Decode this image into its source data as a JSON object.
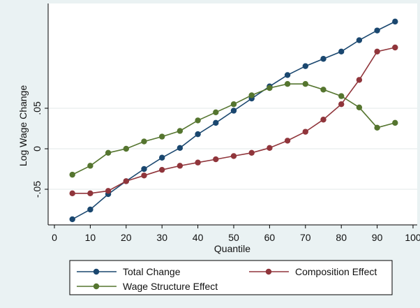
{
  "chart_data": {
    "type": "line",
    "xlabel": "Quantile",
    "ylabel": "Log Wage Change",
    "xlim": [
      0,
      100
    ],
    "ylim": [
      -0.0875,
      0.16
    ],
    "x_ticks": [
      0,
      10,
      20,
      30,
      40,
      50,
      60,
      70,
      80,
      90,
      100
    ],
    "y_ticks": [
      {
        "value": -0.05,
        "label": "-.05"
      },
      {
        "value": 0,
        "label": "0"
      },
      {
        "value": 0.05,
        "label": ".05"
      }
    ],
    "grid": {
      "y_major": true,
      "x_major": false
    },
    "legend": {
      "position": "bottom",
      "columns": 2
    },
    "x": [
      5,
      10,
      15,
      20,
      25,
      30,
      35,
      40,
      45,
      50,
      55,
      60,
      65,
      70,
      75,
      80,
      85,
      90,
      95
    ],
    "series": [
      {
        "name": "Total Change",
        "color": "#1a476f",
        "values": [
          -0.087,
          -0.075,
          -0.056,
          -0.04,
          -0.025,
          -0.011,
          0.001,
          0.018,
          0.032,
          0.047,
          0.062,
          0.077,
          0.091,
          0.102,
          0.111,
          0.12,
          0.134,
          0.146,
          0.157
        ]
      },
      {
        "name": "Composition Effect",
        "color": "#90353b",
        "values": [
          -0.055,
          -0.055,
          -0.052,
          -0.04,
          -0.033,
          -0.026,
          -0.021,
          -0.017,
          -0.013,
          -0.009,
          -0.005,
          0.001,
          0.01,
          0.021,
          0.036,
          0.055,
          0.085,
          0.12,
          0.125
        ]
      },
      {
        "name": "Wage Structure Effect",
        "color": "#55752f",
        "values": [
          -0.032,
          -0.021,
          -0.005,
          0.0,
          0.009,
          0.015,
          0.022,
          0.035,
          0.045,
          0.055,
          0.066,
          0.075,
          0.08,
          0.08,
          0.073,
          0.065,
          0.051,
          0.026,
          0.032
        ]
      }
    ]
  }
}
